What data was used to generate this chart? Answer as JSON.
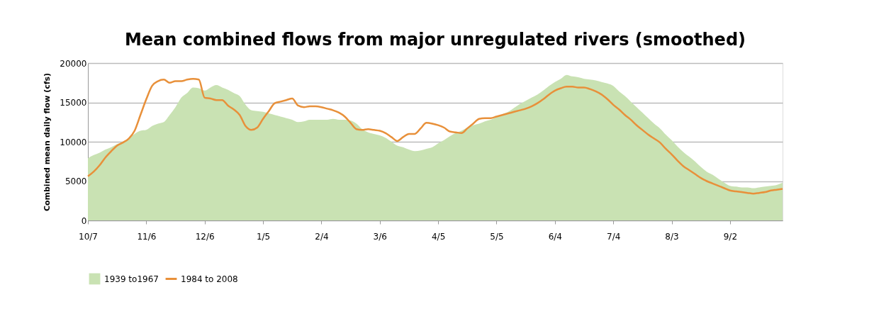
{
  "chart_data": {
    "type": "area",
    "title": "Mean combined flows from major unregulated rivers (smoothed)",
    "ylabel": "Combined mean daily flow (cfs)",
    "categories": [
      "10/7",
      null,
      null,
      null,
      null,
      null,
      null,
      null,
      null,
      null,
      "11/6",
      null,
      null,
      null,
      null,
      null,
      null,
      null,
      null,
      null,
      "12/6",
      null,
      null,
      null,
      null,
      null,
      null,
      null,
      null,
      null,
      "1/5",
      null,
      null,
      null,
      null,
      null,
      null,
      null,
      null,
      null,
      "2/4",
      null,
      null,
      null,
      null,
      null,
      null,
      null,
      null,
      null,
      "3/6",
      null,
      null,
      null,
      null,
      null,
      null,
      null,
      null,
      null,
      "4/5",
      null,
      null,
      null,
      null,
      null,
      null,
      null,
      null,
      null,
      "5/5",
      null,
      null,
      null,
      null,
      null,
      null,
      null,
      null,
      null,
      "6/4",
      null,
      null,
      null,
      null,
      null,
      null,
      null,
      null,
      null,
      "7/4",
      null,
      null,
      null,
      null,
      null,
      null,
      null,
      null,
      null,
      "8/3",
      null,
      null,
      null,
      null,
      null,
      null,
      null,
      null,
      null,
      "9/2",
      null,
      null,
      null,
      null,
      null,
      null,
      null,
      null,
      null
    ],
    "ylim": [
      0,
      20000
    ],
    "yticks": [
      0,
      5000,
      10000,
      15000,
      20000
    ],
    "grid": "y",
    "legend": "bottom",
    "series": [
      {
        "name": "1939 to1967",
        "color": "#c9e2b3",
        "values": [
          7900,
          8300,
          8600,
          9000,
          9300,
          9700,
          10000,
          10400,
          11000,
          11400,
          11500,
          12000,
          12300,
          12500,
          13400,
          14400,
          15600,
          16200,
          16900,
          16800,
          16500,
          16900,
          17200,
          16900,
          16600,
          16200,
          15800,
          14700,
          14000,
          13900,
          13800,
          13600,
          13400,
          13200,
          13000,
          12800,
          12500,
          12600,
          12800,
          12800,
          12800,
          12800,
          12900,
          12800,
          12800,
          12700,
          12300,
          11600,
          11200,
          11000,
          10800,
          10500,
          10000,
          9500,
          9300,
          9000,
          8800,
          8900,
          9100,
          9300,
          9800,
          10200,
          10700,
          11100,
          11400,
          11800,
          12100,
          12300,
          12600,
          12800,
          13100,
          13500,
          13800,
          14300,
          14800,
          15200,
          15600,
          16000,
          16500,
          17100,
          17600,
          18000,
          18500,
          18300,
          18200,
          18000,
          17900,
          17800,
          17600,
          17400,
          17100,
          16400,
          15800,
          15100,
          14400,
          13700,
          13000,
          12300,
          11700,
          10900,
          10200,
          9400,
          8700,
          8100,
          7500,
          6800,
          6200,
          5800,
          5300,
          4800,
          4400,
          4300,
          4200,
          4200,
          4100,
          4200,
          4300,
          4400,
          4500,
          4800
        ]
      },
      {
        "name": "1984 to 2008",
        "type": "line",
        "color": "#e8903a",
        "values": [
          5600,
          6200,
          7000,
          8000,
          8800,
          9500,
          9900,
          10400,
          11400,
          13400,
          15400,
          17100,
          17700,
          17900,
          17500,
          17700,
          17700,
          17900,
          18000,
          17900,
          15600,
          15500,
          15300,
          15300,
          14600,
          14100,
          13400,
          12000,
          11500,
          11800,
          12900,
          13900,
          14900,
          15100,
          15300,
          15500,
          14600,
          14400,
          14500,
          14500,
          14400,
          14200,
          14000,
          13700,
          13200,
          12400,
          11600,
          11500,
          11600,
          11500,
          11400,
          11100,
          10600,
          10100,
          10600,
          11000,
          11000,
          11700,
          12400,
          12300,
          12100,
          11800,
          11300,
          11200,
          11100,
          11700,
          12300,
          12900,
          13000,
          13000,
          13200,
          13400,
          13600,
          13800,
          14000,
          14200,
          14500,
          14900,
          15400,
          16000,
          16500,
          16800,
          17000,
          17000,
          16900,
          16900,
          16700,
          16400,
          16000,
          15400,
          14700,
          14100,
          13400,
          12800,
          12100,
          11500,
          10900,
          10400,
          9900,
          9100,
          8400,
          7600,
          6900,
          6400,
          5900,
          5400,
          5000,
          4700,
          4400,
          4100,
          3800,
          3700,
          3600,
          3500,
          3400,
          3500,
          3600,
          3800,
          3900,
          4000
        ]
      }
    ]
  }
}
